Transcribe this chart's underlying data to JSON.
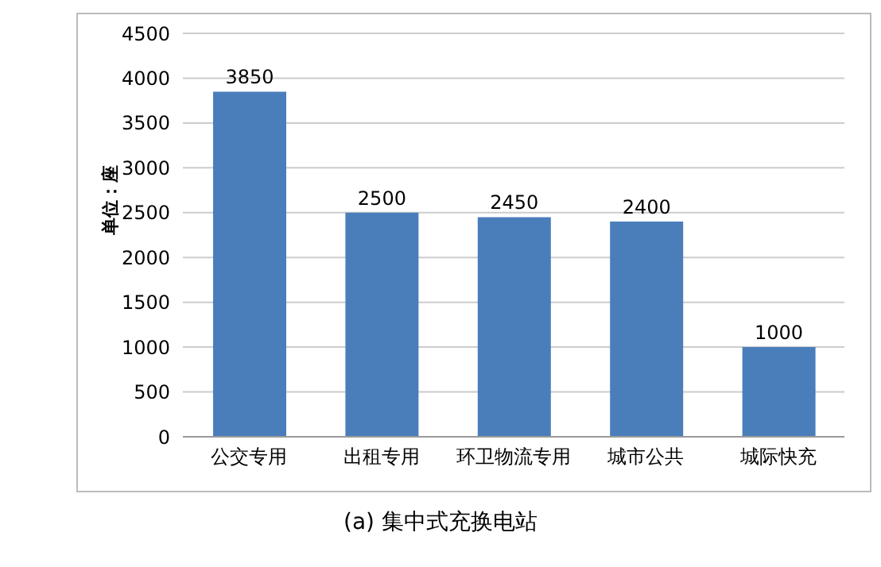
{
  "chart_data": {
    "type": "bar",
    "title": "(a) 集中式充换电站",
    "ylabel": "单位：座",
    "categories": [
      "公交专用",
      "出租专用",
      "环卫物流专用",
      "城市公共",
      "城际快充"
    ],
    "values": [
      3850,
      2500,
      2450,
      2400,
      1000
    ],
    "color": "#4a7ebb",
    "ylim": [
      0,
      4500
    ],
    "yticks": [
      0,
      500,
      1000,
      1500,
      2000,
      2500,
      3000,
      3500,
      4000,
      4500
    ],
    "grid": "y",
    "data_labels": true
  }
}
